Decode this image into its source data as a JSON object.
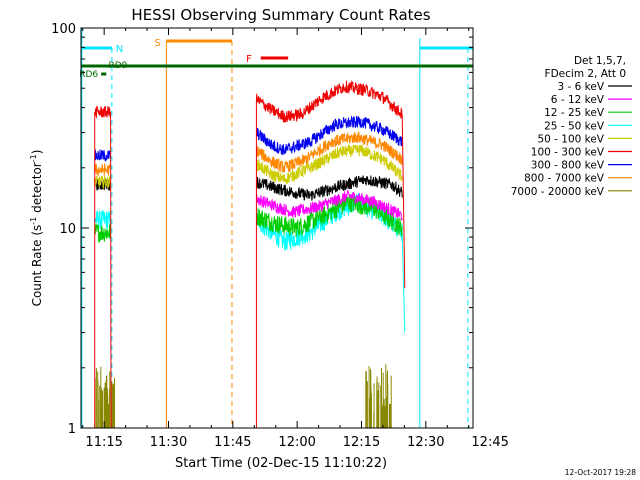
{
  "chart_data": {
    "type": "line",
    "title": "HESSI Observing Summary Count Rates",
    "xlabel": "Start Time (02-Dec-15 11:10:22)",
    "ylabel_main": "Count Rate (s",
    "ylabel_sup1": "-1",
    "ylabel_mid": " detector",
    "ylabel_sup2": "-1",
    "ylabel_end": ")",
    "y_scale": "log",
    "ylim": [
      1,
      100
    ],
    "xlim_minutes": [
      9.6,
      101.0
    ],
    "xticks": [
      {
        "label": "11:15",
        "min": 15
      },
      {
        "label": "11:30",
        "min": 30
      },
      {
        "label": "11:45",
        "min": 45
      },
      {
        "label": "12:00",
        "min": 60
      },
      {
        "label": "12:15",
        "min": 75
      },
      {
        "label": "12:30",
        "min": 90
      },
      {
        "label": "12:45",
        "min": 105
      }
    ],
    "yticks": [
      {
        "label": "1",
        "v": 1
      },
      {
        "label": "10",
        "v": 10
      },
      {
        "label": "100",
        "v": 100
      }
    ],
    "legend_placement": "right",
    "legend": {
      "header1": "Det 1,5,7,",
      "header2": "FDecim 2, Att 0",
      "entries": [
        {
          "label": "3 - 6 keV",
          "color": "#000000"
        },
        {
          "label": "6 - 12 keV",
          "color": "#ff00ff"
        },
        {
          "label": "12 - 25 keV",
          "color": "#00cc00"
        },
        {
          "label": "25 - 50 keV",
          "color": "#00ffff"
        },
        {
          "label": "50 - 100 keV",
          "color": "#cccc00"
        },
        {
          "label": "100 - 300 keV",
          "color": "#ee0000"
        },
        {
          "label": "300 - 800 keV",
          "color": "#0000ee"
        },
        {
          "label": "800 - 7000 keV",
          "color": "#ff8800"
        },
        {
          "label": "7000 - 20000 keV",
          "color": "#888800"
        }
      ]
    },
    "flags": [
      {
        "label": "N",
        "color": "#00e5ff"
      },
      {
        "label": "S",
        "color": "#ff8800"
      },
      {
        "label": "F",
        "color": "#ee0000"
      },
      {
        "label": "RD9",
        "color": "#006600"
      },
      {
        "label": "RD6",
        "color": "#006600"
      }
    ],
    "series": [
      {
        "name": "3 - 6 keV",
        "color": "#000000",
        "segments": [
          {
            "t": [
              11.5,
              12.8
            ],
            "y": [
              1,
              1
            ]
          },
          {
            "t": [
              12.8,
              16.5
            ],
            "y": [
              16.5,
              16.5
            ]
          },
          {
            "t": [
              47.5,
              50.5
            ],
            "y": [
              1,
              1
            ]
          },
          {
            "t": [
              50.5,
              56.5,
              63,
              69,
              76,
              82,
              84.5
            ],
            "y": [
              17,
              15.5,
              14.5,
              16,
              17.5,
              16.5,
              15
            ]
          }
        ]
      },
      {
        "name": "6 - 12 keV",
        "color": "#ff00ff",
        "segments": [
          {
            "t": [
              50.5,
              55,
              59,
              65,
              72,
              78,
              84.5
            ],
            "y": [
              14,
              12.8,
              12,
              12.8,
              14.5,
              13.5,
              11.5
            ]
          }
        ]
      },
      {
        "name": "12 - 25 keV",
        "color": "#00cc00",
        "segments": [
          {
            "t": [
              12.8,
              16.5
            ],
            "y": [
              9.5,
              9.5
            ]
          },
          {
            "t": [
              50.5,
              55,
              60,
              66,
              72,
              78,
              84.5
            ],
            "y": [
              11.5,
              10.5,
              10,
              11.5,
              13.5,
              12.5,
              10
            ]
          }
        ]
      },
      {
        "name": "25 - 50 keV",
        "color": "#00ffff",
        "segments": [
          {
            "t": [
              12.8,
              16.5
            ],
            "y": [
              11,
              11
            ]
          },
          {
            "t": [
              50.5,
              54,
              57,
              63,
              69,
              74,
              80,
              84.5
            ],
            "y": [
              11,
              9.5,
              8.5,
              9.5,
              12,
              13.5,
              11.5,
              9.5
            ]
          },
          {
            "t": [
              84.5,
              85.1
            ],
            "y": [
              9.5,
              3
            ]
          }
        ]
      },
      {
        "name": "50 - 100 keV",
        "color": "#cccc00",
        "segments": [
          {
            "t": [
              12.8,
              16.5
            ],
            "y": [
              17,
              17
            ]
          },
          {
            "t": [
              50.5,
              54,
              57,
              63,
              70,
              75,
              80,
              84.5
            ],
            "y": [
              21,
              18.5,
              17.5,
              20,
              24,
              24.5,
              22,
              18
            ]
          }
        ]
      },
      {
        "name": "100 - 300 keV",
        "color": "#ee0000",
        "segments": [
          {
            "t": [
              11.5,
              12.8
            ],
            "y": [
              1,
              1
            ]
          },
          {
            "t": [
              12.8,
              16.5
            ],
            "y": [
              38,
              38
            ]
          },
          {
            "t": [
              47.5,
              50.5
            ],
            "y": [
              1,
              1
            ]
          },
          {
            "t": [
              50.5,
              54,
              57,
              61,
              66,
              71,
              76,
              80,
              84.5
            ],
            "y": [
              44,
              39,
              36,
              37,
              45,
              51,
              49,
              45,
              37
            ]
          },
          {
            "t": [
              84.5,
              85.1
            ],
            "y": [
              37,
              5
            ]
          }
        ]
      },
      {
        "name": "300 - 800 keV",
        "color": "#0000ee",
        "segments": [
          {
            "t": [
              12.8,
              16.5
            ],
            "y": [
              23,
              23
            ]
          },
          {
            "t": [
              50.5,
              54,
              57,
              63,
              69,
              75,
              80,
              84.5
            ],
            "y": [
              30,
              26,
              24.5,
              27,
              33,
              34,
              31,
              27
            ]
          }
        ]
      },
      {
        "name": "800 - 7000 keV",
        "color": "#ff8800",
        "segments": [
          {
            "t": [
              12.8,
              16.5
            ],
            "y": [
              19.5,
              19.5
            ]
          },
          {
            "t": [
              50.5,
              54,
              57,
              62,
              68,
              74,
              80,
              84.5
            ],
            "y": [
              24.5,
              21.5,
              20,
              22,
              27,
              28.5,
              26,
              22
            ]
          }
        ]
      },
      {
        "name": "7000 - 20000 keV",
        "color": "#888800",
        "segments": [
          {
            "t": [
              12.8,
              17.5
            ],
            "y": [
              1,
              1
            ]
          },
          {
            "t": [
              76,
              82
            ],
            "y": [
              1,
              1
            ]
          }
        ]
      }
    ]
  },
  "footer": {
    "timestamp": "12-Oct-2017 19:28"
  }
}
